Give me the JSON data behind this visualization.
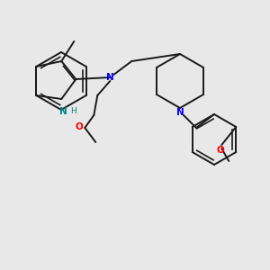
{
  "background_color": "#e8e8e8",
  "bond_color": "#1a1a1a",
  "nitrogen_color": "#0000ff",
  "oxygen_color": "#ff0000",
  "nh_color": "#008080",
  "figsize": [
    3.0,
    3.0
  ],
  "dpi": 100,
  "xlim": [
    0,
    300
  ],
  "ylim": [
    0,
    300
  ]
}
